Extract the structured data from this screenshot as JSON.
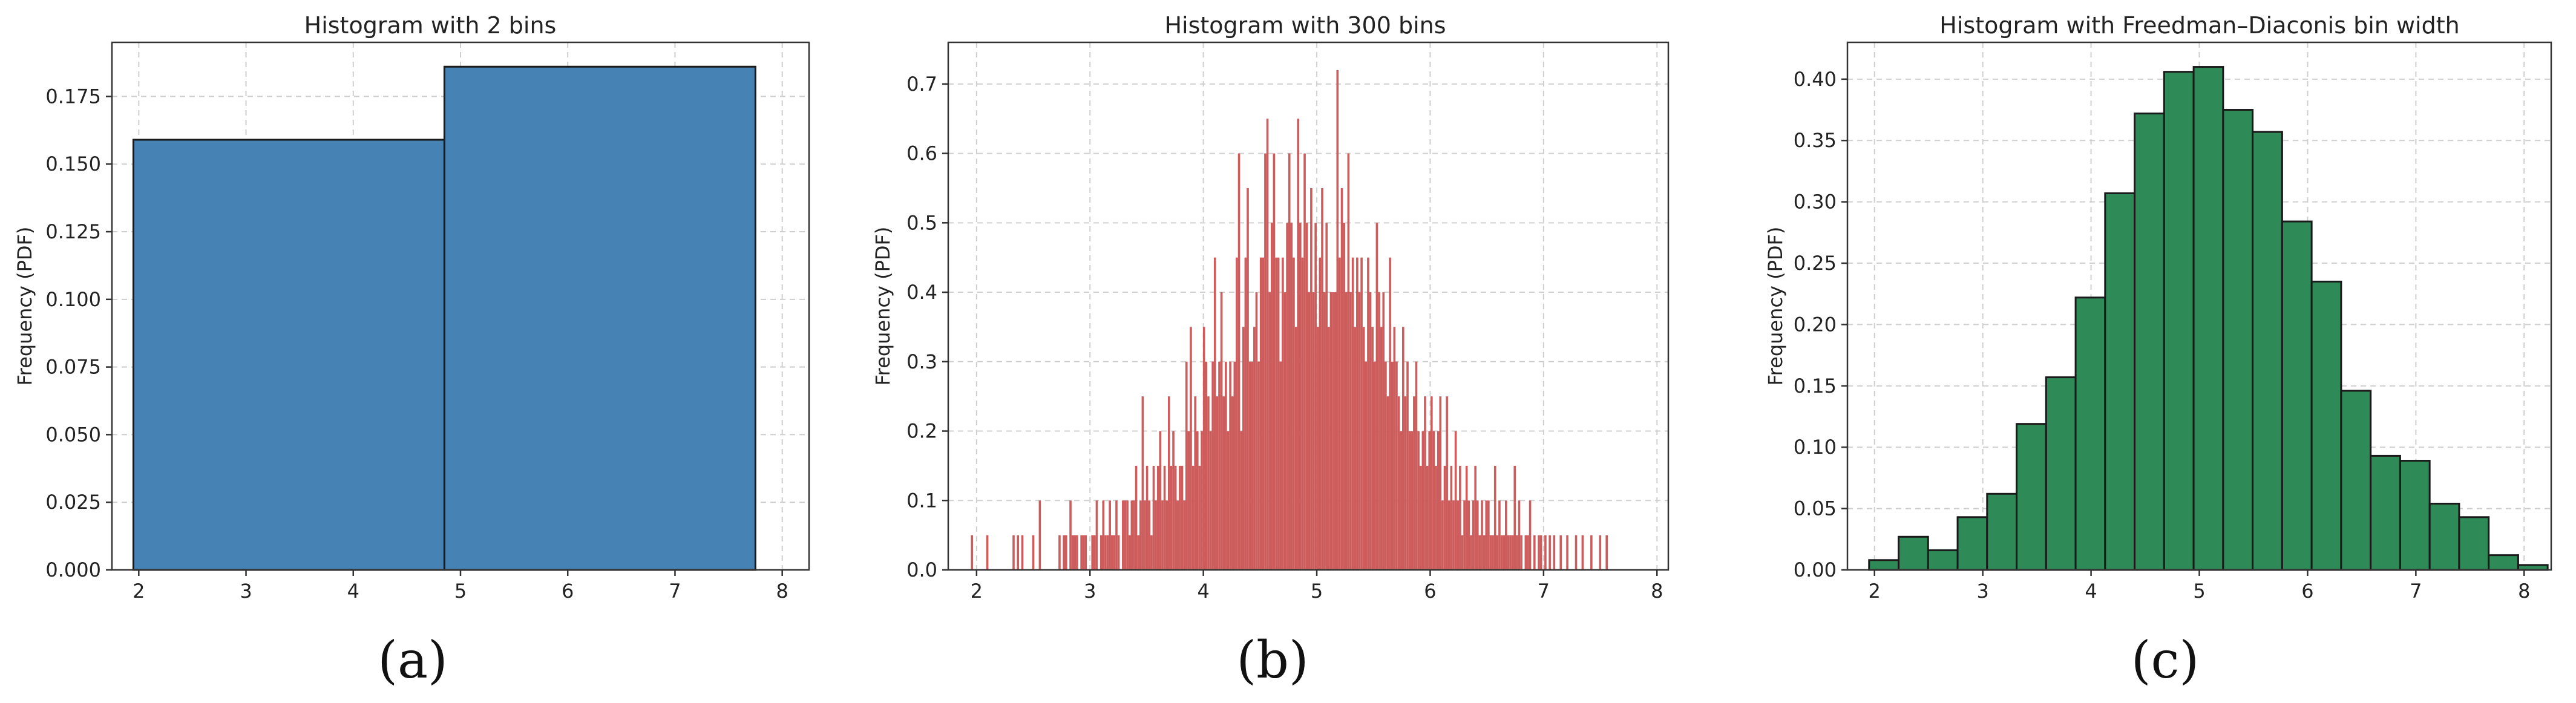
{
  "chart_data": [
    {
      "type": "bar",
      "title": "Histogram with 2 bins",
      "ylabel": "Frequency (PDF)",
      "xlabel": "",
      "xlim": [
        1.75,
        8.25
      ],
      "ylim": [
        0,
        0.195
      ],
      "xticks": [
        2,
        3,
        4,
        5,
        6,
        7,
        8
      ],
      "yticks": [
        0.0,
        0.025,
        0.05,
        0.075,
        0.1,
        0.125,
        0.15,
        0.175
      ],
      "ytick_decimals": 3,
      "grid": true,
      "color": "#4682b4",
      "edgecolor": "#1a1a1a",
      "panel_label": "(a)",
      "bins": [
        {
          "x0": 1.95,
          "x1": 4.85,
          "value": 0.159
        },
        {
          "x0": 4.85,
          "x1": 7.75,
          "value": 0.186
        }
      ]
    },
    {
      "type": "bar",
      "title": "Histogram with 300 bins",
      "ylabel": "Frequency (PDF)",
      "xlabel": "",
      "xlim": [
        1.75,
        8.1
      ],
      "ylim": [
        0,
        0.76
      ],
      "xticks": [
        2,
        3,
        4,
        5,
        6,
        7,
        8
      ],
      "yticks": [
        0.0,
        0.1,
        0.2,
        0.3,
        0.4,
        0.5,
        0.6,
        0.7
      ],
      "ytick_decimals": 1,
      "grid": true,
      "color": "#cd5c5c",
      "edgecolor": "none",
      "panel_label": "(b)",
      "bin_start": 1.95,
      "bin_width": 0.0193,
      "values": [
        0.05,
        0,
        0,
        0,
        0,
        0,
        0,
        0.05,
        0,
        0,
        0,
        0,
        0,
        0,
        0,
        0,
        0,
        0,
        0,
        0.05,
        0,
        0.05,
        0,
        0.05,
        0,
        0,
        0,
        0,
        0.05,
        0,
        0,
        0.1,
        0,
        0,
        0,
        0,
        0,
        0,
        0,
        0,
        0.05,
        0,
        0.05,
        0.05,
        0,
        0.1,
        0.05,
        0.05,
        0.05,
        0,
        0.05,
        0.05,
        0.05,
        0,
        0,
        0.05,
        0.05,
        0.1,
        0,
        0.05,
        0.1,
        0.05,
        0.05,
        0.1,
        0.05,
        0.05,
        0.1,
        0.05,
        0,
        0.1,
        0.1,
        0.1,
        0.05,
        0.1,
        0.1,
        0.15,
        0.05,
        0.1,
        0.25,
        0.1,
        0.15,
        0.1,
        0.05,
        0.15,
        0.1,
        0.15,
        0.2,
        0.1,
        0.15,
        0.1,
        0.25,
        0.15,
        0.2,
        0.15,
        0.1,
        0.15,
        0.15,
        0.1,
        0.3,
        0.2,
        0.35,
        0.15,
        0.25,
        0.2,
        0.15,
        0.2,
        0.35,
        0.3,
        0.25,
        0.2,
        0.3,
        0.45,
        0.25,
        0.3,
        0.4,
        0.25,
        0.3,
        0.2,
        0.3,
        0.25,
        0.3,
        0.45,
        0.6,
        0.2,
        0.35,
        0.45,
        0.55,
        0.3,
        0.3,
        0.35,
        0.4,
        0.3,
        0.45,
        0.45,
        0.6,
        0.65,
        0.4,
        0.5,
        0.6,
        0.45,
        0.45,
        0.3,
        0.45,
        0.4,
        0.5,
        0.6,
        0.5,
        0.45,
        0.35,
        0.65,
        0.5,
        0.45,
        0.6,
        0.5,
        0.4,
        0.55,
        0.4,
        0.5,
        0.35,
        0.45,
        0.55,
        0.4,
        0.5,
        0.35,
        0.4,
        0.4,
        0.4,
        0.72,
        0.45,
        0.55,
        0.5,
        0.4,
        0.6,
        0.4,
        0.45,
        0.35,
        0.45,
        0.4,
        0.45,
        0.35,
        0.3,
        0.45,
        0.4,
        0.35,
        0.3,
        0.5,
        0.4,
        0.35,
        0.4,
        0.3,
        0.25,
        0.45,
        0.3,
        0.35,
        0.3,
        0.25,
        0.2,
        0.35,
        0.25,
        0.3,
        0.2,
        0.2,
        0.25,
        0.3,
        0.2,
        0.15,
        0.2,
        0.25,
        0.15,
        0.2,
        0.25,
        0.2,
        0.15,
        0.2,
        0.25,
        0.1,
        0.15,
        0.25,
        0.1,
        0.15,
        0.1,
        0.2,
        0.1,
        0.15,
        0.05,
        0.1,
        0.15,
        0.1,
        0.05,
        0.1,
        0.15,
        0.1,
        0.05,
        0.1,
        0.05,
        0.1,
        0.1,
        0.05,
        0.05,
        0.15,
        0.05,
        0.1,
        0.05,
        0.05,
        0.1,
        0.05,
        0.05,
        0.05,
        0.15,
        0.05,
        0.1,
        0.05,
        0,
        0.05,
        0.05,
        0.1,
        0,
        0.05,
        0,
        0.05,
        0.05,
        0,
        0.05,
        0,
        0.05,
        0,
        0.05,
        0,
        0,
        0.05,
        0,
        0,
        0.05,
        0,
        0,
        0,
        0.05,
        0,
        0,
        0.05,
        0,
        0,
        0,
        0.05,
        0,
        0,
        0,
        0.05,
        0,
        0,
        0.05
      ]
    },
    {
      "type": "bar",
      "title": "Histogram with Freedman–Diaconis bin width",
      "ylabel": "Frequency (PDF)",
      "xlabel": "",
      "xlim": [
        1.75,
        8.25
      ],
      "ylim": [
        0,
        0.43
      ],
      "xticks": [
        2,
        3,
        4,
        5,
        6,
        7,
        8
      ],
      "yticks": [
        0.0,
        0.05,
        0.1,
        0.15,
        0.2,
        0.25,
        0.3,
        0.35,
        0.4
      ],
      "ytick_decimals": 2,
      "grid": true,
      "color": "#2e8b57",
      "edgecolor": "#1a1a1a",
      "panel_label": "(c)",
      "bin_start": 1.95,
      "bin_width": 0.2725,
      "values": [
        0.008,
        0.027,
        0.016,
        0.043,
        0.062,
        0.119,
        0.157,
        0.222,
        0.307,
        0.372,
        0.406,
        0.41,
        0.375,
        0.357,
        0.284,
        0.235,
        0.146,
        0.093,
        0.089,
        0.054,
        0.043,
        0.012,
        0.004
      ]
    }
  ]
}
